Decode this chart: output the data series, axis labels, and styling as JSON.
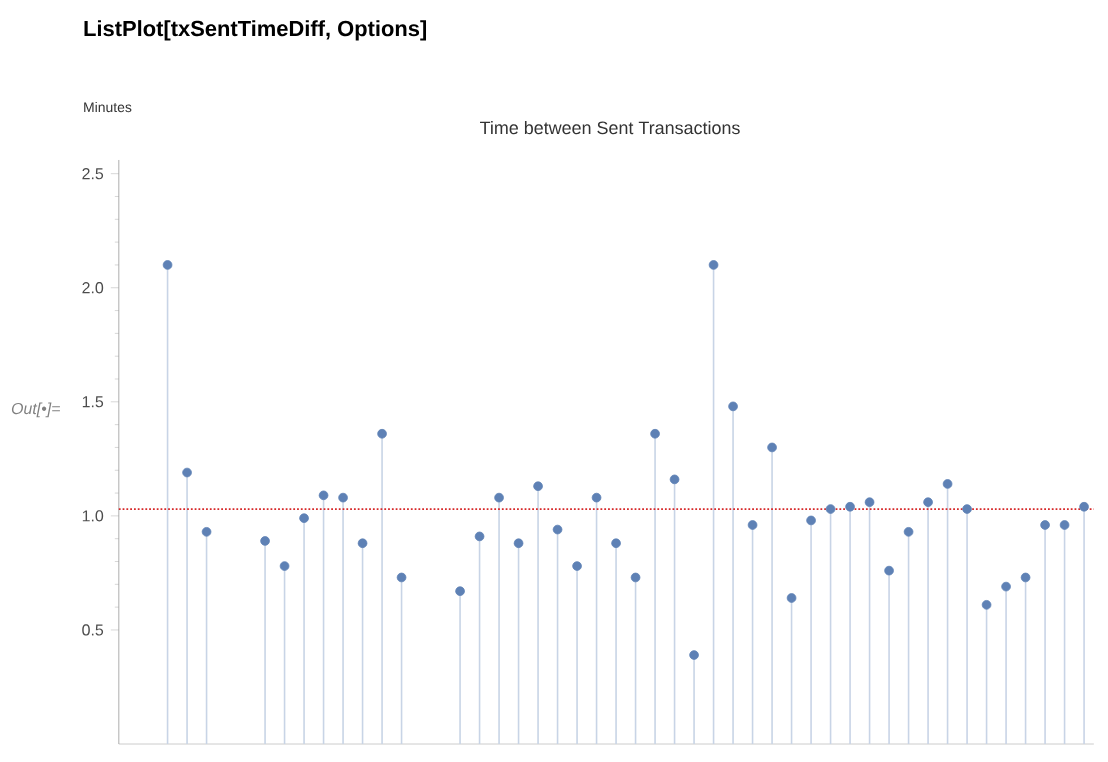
{
  "chart_data": {
    "type": "lollipop",
    "title": "Time between Sent Transactions",
    "ylabel": "Minutes",
    "annotations": [
      "ListPlot[txSentTimeDiff, Options]",
      "Out[•]="
    ],
    "categories": [
      null,
      null,
      null,
      null,
      null,
      null,
      null,
      null,
      null,
      null,
      null,
      null,
      null,
      null,
      null,
      null,
      null,
      null,
      null,
      null,
      null,
      null,
      null,
      null,
      null,
      null,
      null,
      null,
      null,
      null,
      null,
      null,
      null,
      null,
      null,
      null,
      null,
      null,
      null,
      null,
      null,
      null,
      null,
      null,
      null,
      null,
      null,
      null,
      null,
      null
    ],
    "values": [
      null,
      null,
      2.1,
      1.19,
      0.93,
      null,
      null,
      0.89,
      0.78,
      0.99,
      1.09,
      1.08,
      0.88,
      1.36,
      0.73,
      null,
      null,
      0.67,
      0.91,
      1.08,
      0.88,
      1.13,
      0.94,
      0.78,
      1.08,
      0.88,
      0.73,
      1.36,
      1.16,
      0.39,
      2.1,
      1.48,
      0.96,
      1.3,
      0.64,
      0.98,
      1.03,
      1.04,
      1.06,
      0.76,
      0.93,
      1.06,
      1.14,
      1.03,
      0.61,
      0.69,
      0.73,
      0.96,
      0.96,
      1.04
    ],
    "color": "#5e81b5",
    "ylim": [
      0,
      2.56
    ],
    "yticks": [
      0.5,
      {
        "value": 1.0,
        "label": "1.0"
      },
      1.5,
      {
        "value": 2.0,
        "label": "2.0"
      },
      2.5
    ],
    "tick_labels": "y",
    "marker": "circle",
    "grid": false,
    "ref_lines": [
      {
        "axis": "y",
        "value": 1.03,
        "color": "#d62728",
        "line_style": "dotted"
      }
    ]
  }
}
